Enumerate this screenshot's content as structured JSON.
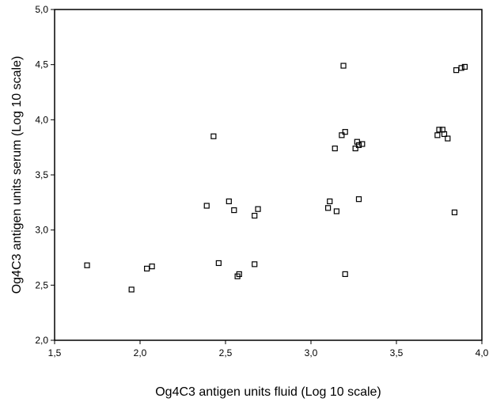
{
  "chart_data": {
    "type": "scatter",
    "xlabel": "Og4C3 antigen units fluid (Log 10 scale)",
    "ylabel": "Og4C3 antigen units serum (Log 10 scale)",
    "xlim": [
      1.5,
      4.0
    ],
    "ylim": [
      2.0,
      5.0
    ],
    "xticks": [
      1.5,
      2.0,
      2.5,
      3.0,
      3.5,
      4.0
    ],
    "yticks": [
      2.0,
      2.5,
      3.0,
      3.5,
      4.0,
      4.5,
      5.0
    ],
    "xtick_labels": [
      "1,5",
      "2,0",
      "2,5",
      "3,0",
      "3,5",
      "4,0"
    ],
    "ytick_labels": [
      "2,0",
      "2,5",
      "3,0",
      "3,5",
      "4,0",
      "4,5",
      "5,0"
    ],
    "grid": false,
    "marker": "hollow-square",
    "colors": {
      "marker": "#000000",
      "axis": "#000000",
      "background": "#ffffff"
    },
    "points": [
      {
        "x": 1.69,
        "y": 2.68
      },
      {
        "x": 1.95,
        "y": 2.46
      },
      {
        "x": 2.04,
        "y": 2.65
      },
      {
        "x": 2.07,
        "y": 2.67
      },
      {
        "x": 2.39,
        "y": 3.22
      },
      {
        "x": 2.43,
        "y": 3.85
      },
      {
        "x": 2.46,
        "y": 2.7
      },
      {
        "x": 2.52,
        "y": 3.26
      },
      {
        "x": 2.55,
        "y": 3.18
      },
      {
        "x": 2.57,
        "y": 2.58
      },
      {
        "x": 2.58,
        "y": 2.6
      },
      {
        "x": 2.67,
        "y": 2.69
      },
      {
        "x": 2.67,
        "y": 3.13
      },
      {
        "x": 2.69,
        "y": 3.19
      },
      {
        "x": 3.1,
        "y": 3.2
      },
      {
        "x": 3.11,
        "y": 3.26
      },
      {
        "x": 3.14,
        "y": 3.74
      },
      {
        "x": 3.15,
        "y": 3.17
      },
      {
        "x": 3.18,
        "y": 3.86
      },
      {
        "x": 3.19,
        "y": 4.49
      },
      {
        "x": 3.2,
        "y": 3.89
      },
      {
        "x": 3.2,
        "y": 2.6
      },
      {
        "x": 3.26,
        "y": 3.74
      },
      {
        "x": 3.27,
        "y": 3.8
      },
      {
        "x": 3.28,
        "y": 3.28
      },
      {
        "x": 3.28,
        "y": 3.77
      },
      {
        "x": 3.3,
        "y": 3.78
      },
      {
        "x": 3.74,
        "y": 3.86
      },
      {
        "x": 3.75,
        "y": 3.91
      },
      {
        "x": 3.77,
        "y": 3.91
      },
      {
        "x": 3.78,
        "y": 3.87
      },
      {
        "x": 3.8,
        "y": 3.83
      },
      {
        "x": 3.84,
        "y": 3.16
      },
      {
        "x": 3.85,
        "y": 4.45
      },
      {
        "x": 3.88,
        "y": 4.47
      },
      {
        "x": 3.9,
        "y": 4.48
      }
    ]
  }
}
